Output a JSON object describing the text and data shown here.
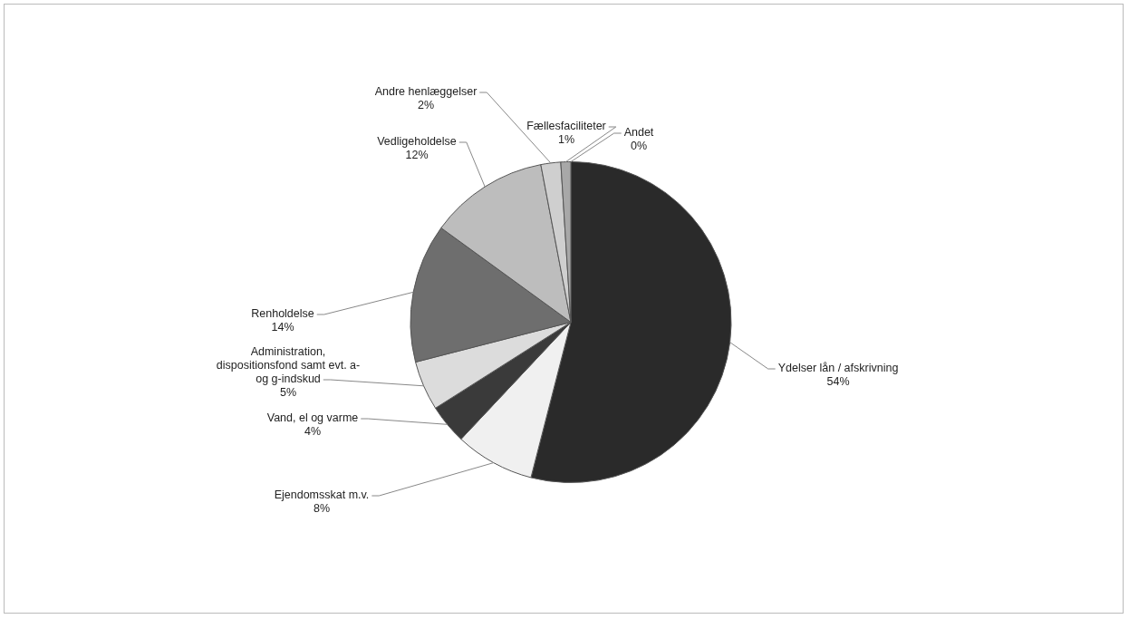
{
  "chart_data": {
    "type": "pie",
    "categories": [
      "Ydelser lån / afskrivning",
      "Ejendomsskat m.v.",
      "Vand, el og varme",
      "Administration, dispositionsfond samt evt. a- og g-indskud",
      "Renholdelse",
      "Vedligeholdelse",
      "Andre henlæggelser",
      "Fællesfaciliteter",
      "Andet"
    ],
    "values": [
      54,
      8,
      4,
      5,
      14,
      12,
      2,
      1,
      0
    ],
    "value_labels": [
      "54%",
      "8%",
      "4%",
      "5%",
      "14%",
      "12%",
      "2%",
      "1%",
      "0%"
    ],
    "colors": [
      "#2a2a2a",
      "#f0f0f0",
      "#3a3a3a",
      "#dcdcdc",
      "#6e6e6e",
      "#bdbdbd",
      "#cfcfcf",
      "#a8a8a8",
      "#ffffff"
    ],
    "legend": false
  }
}
